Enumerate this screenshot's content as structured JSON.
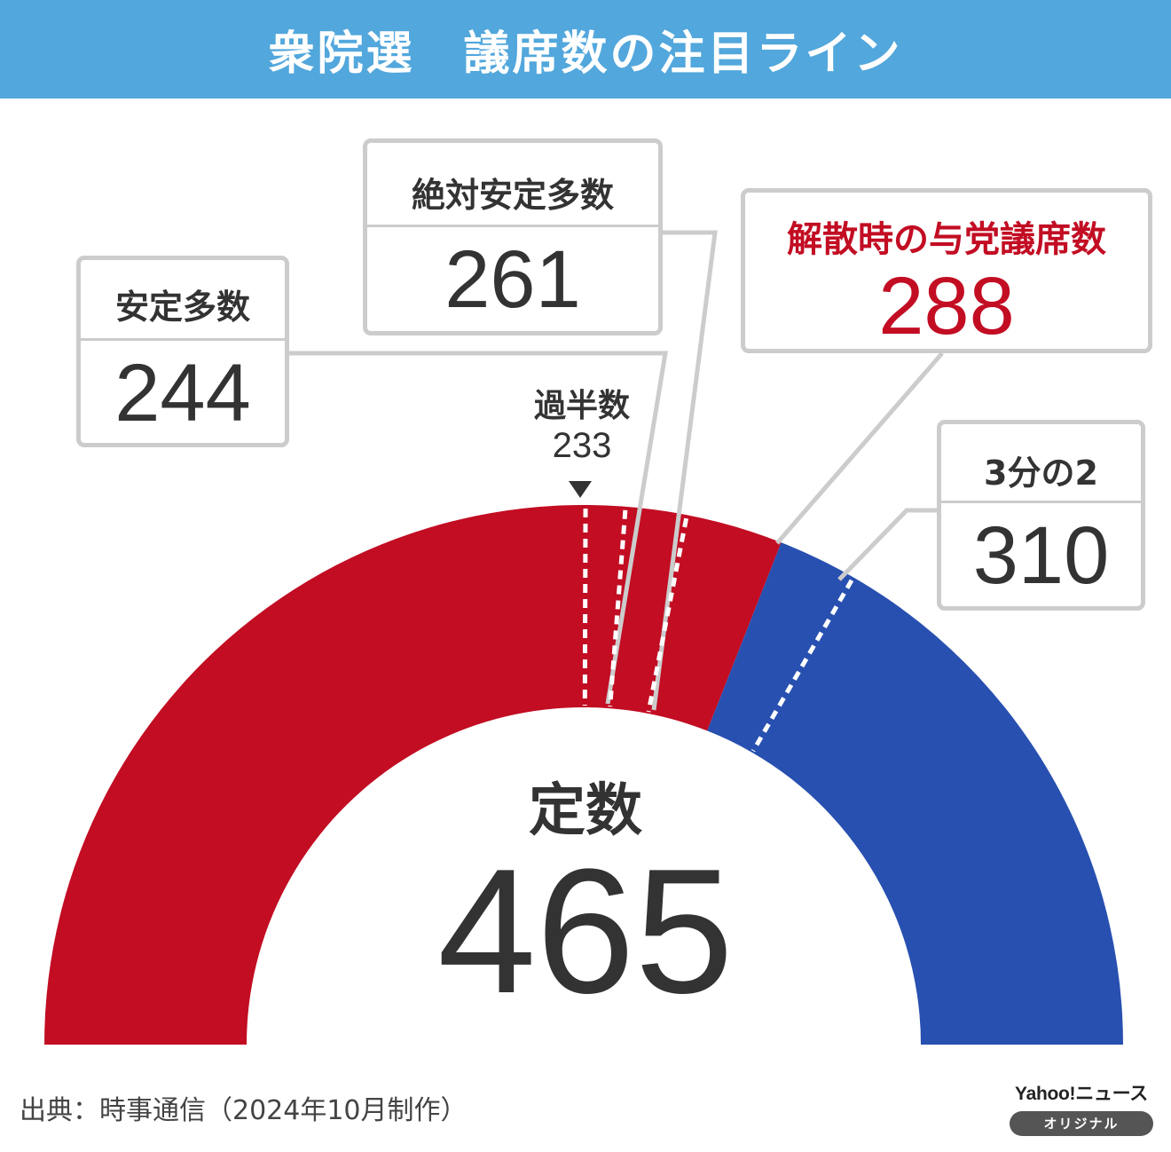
{
  "header": {
    "title": "衆院選　議席数の注目ライン"
  },
  "chart_data": {
    "type": "semicircle-seat-chart",
    "total_seats": 465,
    "total_label": "定数",
    "segments": [
      {
        "name": "解散時の与党議席数",
        "value": 288,
        "color": "#c20d23"
      },
      {
        "name": "",
        "value": 177,
        "color": "#2850b0"
      }
    ],
    "thresholds": [
      {
        "label": "過半数",
        "value": 233
      },
      {
        "label": "安定多数",
        "value": 244
      },
      {
        "label": "絶対安定多数",
        "value": 261
      },
      {
        "label": "解散時の与党議席数",
        "value": 288,
        "highlight": true
      },
      {
        "label": "3分の2",
        "value": 310
      }
    ]
  },
  "source": "出典：時事通信（2024年10月制作）",
  "logo": {
    "brand": "Yahoo!ニュース",
    "badge": "オリジナル"
  }
}
